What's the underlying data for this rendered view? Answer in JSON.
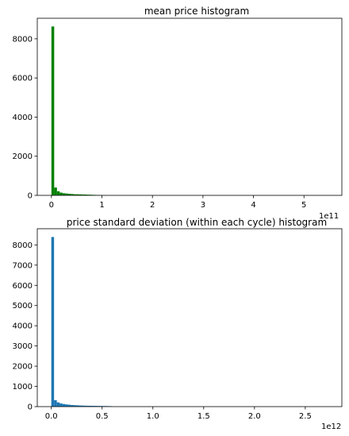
{
  "chart_data": [
    {
      "type": "bar",
      "title": "mean price histogram",
      "xlabel": "",
      "ylabel": "",
      "color": "#008000",
      "offset_text": "1e11",
      "xlim": [
        -0.28,
        5.75
      ],
      "ylim": [
        0,
        9050
      ],
      "x_ticks": [
        0,
        1,
        2,
        3,
        4,
        5
      ],
      "x_tick_labels": [
        "0",
        "1",
        "2",
        "3",
        "4",
        "5"
      ],
      "y_ticks": [
        0,
        2000,
        4000,
        6000,
        8000
      ],
      "y_tick_labels": [
        "0",
        "2000",
        "4000",
        "6000",
        "8000"
      ],
      "bin_start": 0,
      "bin_width": 0.0548,
      "values": [
        8630,
        400,
        210,
        140,
        110,
        95,
        80,
        70,
        55,
        55,
        50,
        45,
        40,
        35,
        30,
        25,
        20,
        15,
        10,
        8
      ]
    },
    {
      "type": "bar",
      "title": "price standard deviation (within each cycle) histogram",
      "xlabel": "",
      "ylabel": "",
      "color": "#1f77b4",
      "offset_text": "1e12",
      "xlim": [
        -0.138,
        2.86
      ],
      "ylim": [
        0,
        8800
      ],
      "x_ticks": [
        0,
        0.5,
        1,
        1.5,
        2,
        2.5
      ],
      "x_tick_labels": [
        "0.0",
        "0.5",
        "1.0",
        "1.5",
        "2.0",
        "2.5"
      ],
      "y_ticks": [
        0,
        1000,
        2000,
        3000,
        4000,
        5000,
        6000,
        7000,
        8000
      ],
      "y_tick_labels": [
        "0",
        "1000",
        "2000",
        "3000",
        "4000",
        "5000",
        "6000",
        "7000",
        "8000"
      ],
      "bin_start": 0,
      "bin_width": 0.0272,
      "values": [
        8390,
        320,
        210,
        160,
        130,
        110,
        95,
        80,
        70,
        65,
        55,
        50,
        45,
        42,
        40,
        38,
        35,
        32,
        30,
        28,
        25,
        22
      ]
    }
  ]
}
